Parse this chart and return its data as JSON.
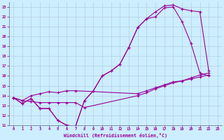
{
  "xlabel": "Windchill (Refroidissement éolien,°C)",
  "bg_color": "#cceeff",
  "line_color": "#990099",
  "grid_color": "#aabbcc",
  "xlim": [
    -0.5,
    23.5
  ],
  "ylim": [
    11,
    23.5
  ],
  "xticks": [
    0,
    1,
    2,
    3,
    4,
    5,
    6,
    7,
    8,
    9,
    10,
    11,
    12,
    13,
    14,
    15,
    16,
    17,
    18,
    19,
    20,
    21,
    22,
    23
  ],
  "yticks": [
    11,
    12,
    13,
    14,
    15,
    16,
    17,
    18,
    19,
    20,
    21,
    22,
    23
  ],
  "line1_x": [
    0,
    1,
    2,
    3,
    4,
    5,
    6,
    7,
    8,
    9,
    10,
    11,
    12,
    13,
    14,
    15,
    16,
    17,
    18,
    19,
    20,
    21,
    22
  ],
  "line1_y": [
    13.8,
    13.2,
    13.7,
    12.7,
    12.7,
    11.5,
    11.0,
    10.9,
    13.5,
    14.5,
    16.0,
    16.5,
    17.2,
    18.9,
    20.9,
    21.8,
    22.0,
    22.9,
    23.0,
    21.5,
    19.3,
    16.3,
    16.0
  ],
  "line2_x": [
    0,
    1,
    2,
    3,
    4,
    5,
    6,
    7,
    8,
    9,
    10,
    11,
    12,
    13,
    14,
    15,
    16,
    17,
    18,
    19,
    20,
    21,
    22
  ],
  "line2_y": [
    13.8,
    13.2,
    13.7,
    12.7,
    12.7,
    11.5,
    11.0,
    10.9,
    13.5,
    14.5,
    16.0,
    16.5,
    17.2,
    18.9,
    20.9,
    21.8,
    22.5,
    23.1,
    23.2,
    22.8,
    22.6,
    22.5,
    16.5
  ],
  "line3_x": [
    0,
    1,
    2,
    3,
    4,
    5,
    6,
    7,
    8,
    14,
    15,
    16,
    17,
    18,
    19,
    20,
    21,
    22
  ],
  "line3_y": [
    13.8,
    13.5,
    13.4,
    13.3,
    13.3,
    13.3,
    13.3,
    13.3,
    12.8,
    14.0,
    14.3,
    14.7,
    15.0,
    15.3,
    15.5,
    15.7,
    15.9,
    16.1
  ],
  "line4_x": [
    0,
    1,
    2,
    3,
    4,
    5,
    6,
    7,
    14,
    15,
    16,
    17,
    18,
    19,
    20,
    21,
    22
  ],
  "line4_y": [
    13.8,
    13.5,
    14.0,
    14.2,
    14.4,
    14.3,
    14.5,
    14.5,
    14.2,
    14.5,
    14.8,
    15.1,
    15.4,
    15.5,
    15.8,
    16.1,
    16.3
  ]
}
